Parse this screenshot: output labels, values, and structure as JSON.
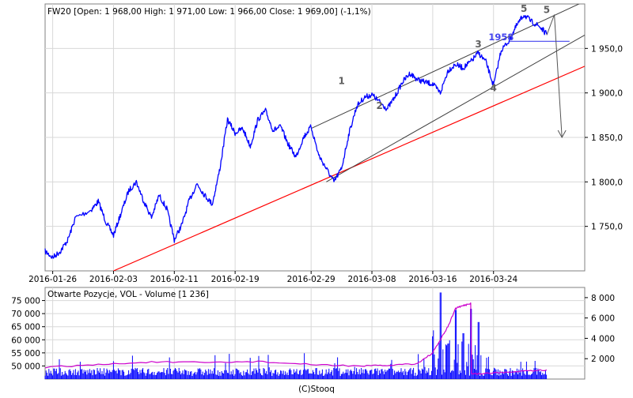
{
  "main_chart": {
    "title": "FW20 [Open: 1 968,00  High: 1 971,00  Low: 1 966,00  Close: 1 969,00] (-1,1%)",
    "x_tick_labels": [
      "2016-01-26",
      "2016-02-03",
      "2016-02-11",
      "2016-02-19",
      "2016-02-29",
      "2016-03-08",
      "2016-03-16",
      "2016-03-24"
    ],
    "y_tick_labels": [
      "1 750,0",
      "1 800,0",
      "1 850,0",
      "1 900,0",
      "1 950,0"
    ],
    "annotations": [
      {
        "label": "1",
        "x": "2016-03-04",
        "y": 1910
      },
      {
        "label": "2",
        "x": "2016-03-09",
        "y": 1882
      },
      {
        "label": "3",
        "x": "2016-03-22",
        "y": 1951
      },
      {
        "label": "4",
        "x": "2016-03-24",
        "y": 1902
      },
      {
        "label": "5",
        "x": "2016-03-28",
        "y": 1991
      },
      {
        "label": "5",
        "x": "2016-03-31",
        "y": 1990
      },
      {
        "label": "1958",
        "x": "2016-03-25",
        "y": 1959
      }
    ]
  },
  "volume_chart": {
    "title": "Otwarte Pozycje, VOL - Volume [1 236]",
    "left_tick_labels": [
      "50 000",
      "55 000",
      "60 000",
      "65 000",
      "70 000",
      "75 000"
    ],
    "right_tick_labels": [
      "2 000",
      "4 000",
      "6 000",
      "8 000"
    ]
  },
  "footer": {
    "credit": "(C)Stooq"
  },
  "colors": {
    "price": "#0000ff",
    "support": "#ff0000",
    "channel": "#404040",
    "open_interest": "#cc00cc",
    "volume": "#0000ff",
    "level": "#4444ee",
    "grid": "#d8d8d8"
  },
  "chart_data": [
    {
      "type": "line",
      "title": "FW20 [Open: 1 968,00  High: 1 971,00  Low: 1 966,00  Close: 1 969,00] (-1,1%)",
      "x_type": "date",
      "xlim": [
        "2016-01-25",
        "2016-04-05"
      ],
      "ylim": [
        1700,
        2000
      ],
      "grid": true,
      "series": [
        {
          "role": "price",
          "points": [
            [
              "2016-01-25",
              1722
            ],
            [
              "2016-01-26",
              1715
            ],
            [
              "2016-01-27",
              1722
            ],
            [
              "2016-01-28",
              1735
            ],
            [
              "2016-01-29",
              1760
            ],
            [
              "2016-01-31",
              1768
            ],
            [
              "2016-02-01",
              1778
            ],
            [
              "2016-02-02",
              1755
            ],
            [
              "2016-02-03",
              1740
            ],
            [
              "2016-02-04",
              1765
            ],
            [
              "2016-02-05",
              1790
            ],
            [
              "2016-02-06",
              1800
            ],
            [
              "2016-02-07",
              1778
            ],
            [
              "2016-02-08",
              1760
            ],
            [
              "2016-02-09",
              1785
            ],
            [
              "2016-02-10",
              1770
            ],
            [
              "2016-02-11",
              1735
            ],
            [
              "2016-02-12",
              1752
            ],
            [
              "2016-02-13",
              1780
            ],
            [
              "2016-02-14",
              1798
            ],
            [
              "2016-02-15",
              1785
            ],
            [
              "2016-02-16",
              1775
            ],
            [
              "2016-02-17",
              1815
            ],
            [
              "2016-02-18",
              1870
            ],
            [
              "2016-02-19",
              1855
            ],
            [
              "2016-02-20",
              1860
            ],
            [
              "2016-02-21",
              1840
            ],
            [
              "2016-02-22",
              1870
            ],
            [
              "2016-02-23",
              1880
            ],
            [
              "2016-02-24",
              1858
            ],
            [
              "2016-02-25",
              1862
            ],
            [
              "2016-02-26",
              1842
            ],
            [
              "2016-02-27",
              1828
            ],
            [
              "2016-02-28",
              1850
            ],
            [
              "2016-02-29",
              1862
            ],
            [
              "2016-03-01",
              1830
            ],
            [
              "2016-03-02",
              1815
            ],
            [
              "2016-03-03",
              1800
            ],
            [
              "2016-03-04",
              1815
            ],
            [
              "2016-03-05",
              1855
            ],
            [
              "2016-03-06",
              1885
            ],
            [
              "2016-03-07",
              1895
            ],
            [
              "2016-03-08",
              1898
            ],
            [
              "2016-03-09",
              1890
            ],
            [
              "2016-03-10",
              1882
            ],
            [
              "2016-03-11",
              1895
            ],
            [
              "2016-03-12",
              1912
            ],
            [
              "2016-03-13",
              1922
            ],
            [
              "2016-03-14",
              1915
            ],
            [
              "2016-03-15",
              1912
            ],
            [
              "2016-03-16",
              1910
            ],
            [
              "2016-03-17",
              1900
            ],
            [
              "2016-03-18",
              1925
            ],
            [
              "2016-03-19",
              1932
            ],
            [
              "2016-03-20",
              1928
            ],
            [
              "2016-03-21",
              1935
            ],
            [
              "2016-03-22",
              1945
            ],
            [
              "2016-03-23",
              1935
            ],
            [
              "2016-03-24",
              1908
            ],
            [
              "2016-03-25",
              1948
            ],
            [
              "2016-03-26",
              1958
            ],
            [
              "2016-03-27",
              1975
            ],
            [
              "2016-03-28",
              1988
            ],
            [
              "2016-03-29",
              1980
            ],
            [
              "2016-03-30",
              1975
            ],
            [
              "2016-03-31",
              1966
            ]
          ]
        },
        {
          "role": "support-line",
          "points": [
            [
              "2016-02-03",
              1700
            ],
            [
              "2016-04-05",
              1930
            ]
          ]
        },
        {
          "role": "channel-upper",
          "points": [
            [
              "2016-02-29",
              1860
            ],
            [
              "2016-04-05",
              2003
            ]
          ]
        },
        {
          "role": "channel-lower",
          "points": [
            [
              "2016-03-02",
              1800
            ],
            [
              "2016-04-05",
              1965
            ]
          ]
        },
        {
          "role": "level-1958",
          "points": [
            [
              "2016-03-26",
              1958
            ],
            [
              "2016-04-03",
              1958
            ]
          ]
        },
        {
          "role": "projection",
          "points": [
            [
              "2016-03-31",
              1965
            ],
            [
              "2016-04-01",
              1988
            ],
            [
              "2016-04-02",
              1850
            ]
          ]
        }
      ]
    },
    {
      "type": "bar",
      "title": "Otwarte Pozycje, VOL - Volume [1 236]",
      "x_type": "date",
      "xlim": [
        "2016-01-25",
        "2016-04-05"
      ],
      "ylim_left": [
        45000,
        80000
      ],
      "ylim_right": [
        0,
        9000
      ],
      "series": [
        {
          "name": "Otwarte Pozycje",
          "type": "line",
          "axis": "left",
          "points": [
            [
              "2016-01-25",
              49500
            ],
            [
              "2016-02-01",
              50500
            ],
            [
              "2016-02-08",
              51500
            ],
            [
              "2016-02-15",
              51300
            ],
            [
              "2016-02-22",
              51700
            ],
            [
              "2016-02-29",
              50500
            ],
            [
              "2016-03-07",
              50000
            ],
            [
              "2016-03-10",
              50200
            ],
            [
              "2016-03-14",
              51000
            ],
            [
              "2016-03-16",
              55000
            ],
            [
              "2016-03-17",
              60000
            ],
            [
              "2016-03-18",
              65000
            ],
            [
              "2016-03-19",
              72000
            ],
            [
              "2016-03-20",
              73000
            ],
            [
              "2016-03-21",
              74000
            ],
            [
              "2016-03-22",
              47000
            ],
            [
              "2016-03-25",
              47500
            ],
            [
              "2016-03-28",
              48200
            ],
            [
              "2016-03-31",
              48500
            ]
          ]
        },
        {
          "name": "VOL",
          "type": "bar",
          "axis": "right",
          "spikes": [
            [
              "2016-03-17",
              8500
            ],
            [
              "2016-03-19",
              6800
            ],
            [
              "2016-03-21",
              6900
            ],
            [
              "2016-03-22",
              5600
            ],
            [
              "2016-03-16",
              4200
            ],
            [
              "2016-03-20",
              4500
            ]
          ]
        }
      ]
    }
  ]
}
